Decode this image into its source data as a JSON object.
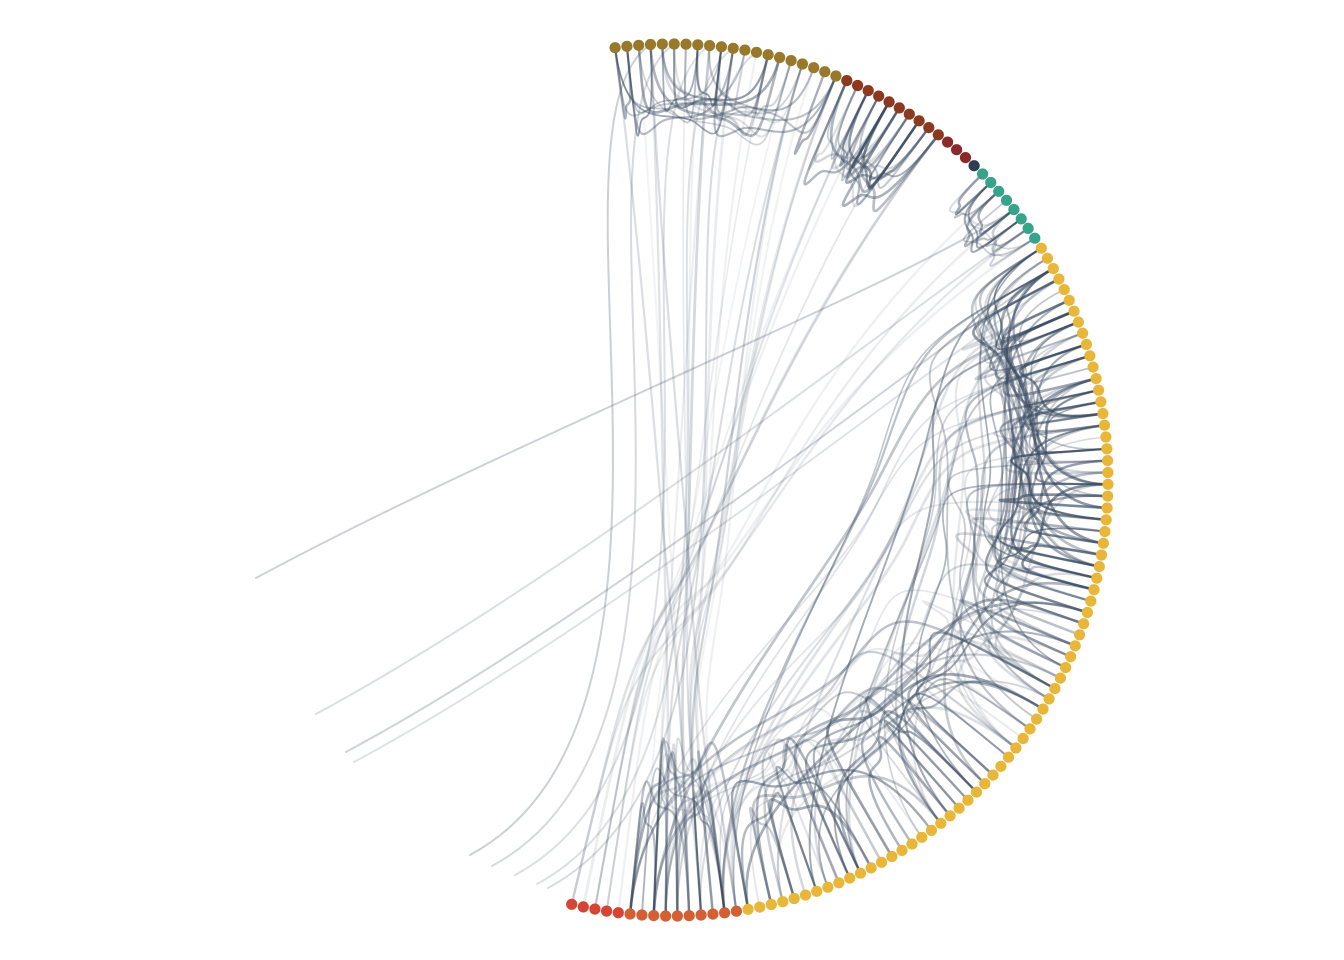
{
  "diagram": {
    "type": "hierarchical-edge-bundling",
    "background": "#ffffff",
    "edge_color": "#3d4d63",
    "node_groups": [
      {
        "id": "olive",
        "color": "#98782b",
        "count": 20
      },
      {
        "id": "brown",
        "color": "#8b3a20",
        "count": 10
      },
      {
        "id": "maroon",
        "color": "#8a2a2a",
        "count": 3
      },
      {
        "id": "dark-slate",
        "color": "#2c3e50",
        "count": 1
      },
      {
        "id": "teal",
        "color": "#36a38a",
        "count": 8
      },
      {
        "id": "yellow",
        "color": "#e8b73a",
        "count": 73
      },
      {
        "id": "orange",
        "color": "#d35f32",
        "count": 10
      },
      {
        "id": "red",
        "color": "#d64533",
        "count": 5
      }
    ],
    "edge_groups": [
      {
        "id": "olive-internal",
        "weight": 0.55
      },
      {
        "id": "brown-internal",
        "weight": 0.6
      },
      {
        "id": "teal-internal",
        "weight": 0.5
      },
      {
        "id": "yellow-upper-internal",
        "weight": 0.65
      },
      {
        "id": "yellow-lower-internal",
        "weight": 0.5
      },
      {
        "id": "orange-internal",
        "weight": 0.45
      },
      {
        "id": "orange-to-yellow",
        "weight": 0.35
      },
      {
        "id": "olive-to-orange",
        "weight": 0.25
      },
      {
        "id": "outgoing-left",
        "weight": 0.3
      }
    ]
  }
}
